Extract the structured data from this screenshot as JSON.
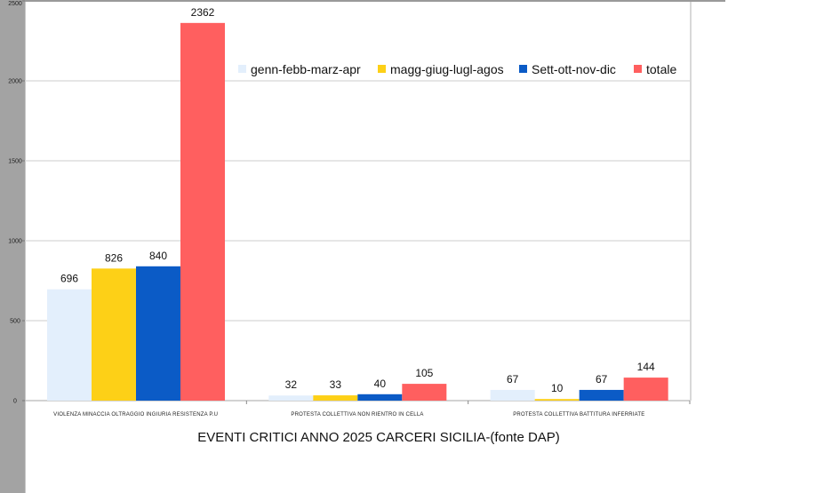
{
  "chart_data": {
    "type": "bar",
    "title": "EVENTI CRITICI ANNO 2025 CARCERI SICILIA-(fonte DAP)",
    "xlabel": "",
    "ylabel": "",
    "ylim": [
      0,
      2500
    ],
    "yticks": [
      0,
      500,
      1000,
      1500,
      2000,
      2500
    ],
    "grid": true,
    "legend_position": "top-right",
    "categories": [
      "VIOLENZA MINACCIA OLTRAGGIO INGIURIA RESISTENZA P.U",
      "PROTESTA COLLETTIVA NON RIENTRO IN CELLA",
      "PROTESTA COLLETTIVA BATTITURA INFERRIATE"
    ],
    "series": [
      {
        "name": "genn-febb-marz-apr",
        "color": "#e3effc",
        "values": [
          696,
          32,
          67
        ]
      },
      {
        "name": "magg-giug-lugl-agos",
        "color": "#fdd017",
        "values": [
          826,
          33,
          10
        ]
      },
      {
        "name": "Sett-ott-nov-dic",
        "color": "#0b5bc6",
        "values": [
          840,
          40,
          67
        ]
      },
      {
        "name": "totale",
        "color": "#ff5f5f",
        "values": [
          2362,
          105,
          144
        ]
      }
    ]
  }
}
